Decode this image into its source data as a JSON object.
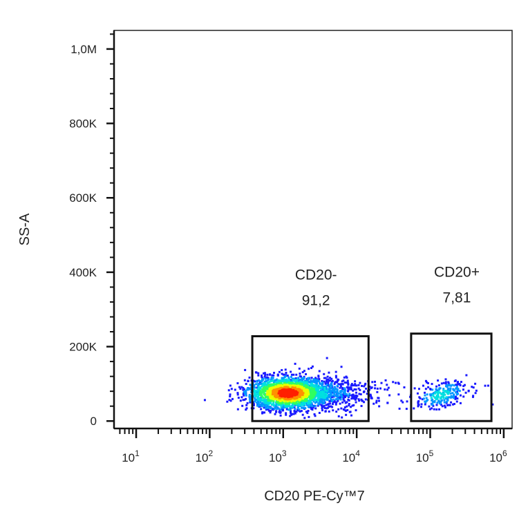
{
  "chart_data": {
    "type": "scatter",
    "plot_style": "flow cytometry density dot plot",
    "xlabel": "CD20 PE-Cy™7",
    "ylabel": "SS-A",
    "x_scale": "log",
    "xlim": [
      5,
      1300000
    ],
    "ylim": [
      -20000,
      1050000
    ],
    "x_ticks": [
      {
        "value": 10,
        "base": "10",
        "exp": "1"
      },
      {
        "value": 100,
        "base": "10",
        "exp": "2"
      },
      {
        "value": 1000,
        "base": "10",
        "exp": "3"
      },
      {
        "value": 10000,
        "base": "10",
        "exp": "4"
      },
      {
        "value": 100000,
        "base": "10",
        "exp": "5"
      },
      {
        "value": 1000000,
        "base": "10",
        "exp": "6"
      }
    ],
    "y_ticks": [
      {
        "value": 0,
        "label": "0"
      },
      {
        "value": 200000,
        "label": "200K"
      },
      {
        "value": 400000,
        "label": "400K"
      },
      {
        "value": 600000,
        "label": "600K"
      },
      {
        "value": 800000,
        "label": "800K"
      },
      {
        "value": 1000000,
        "label": "1,0M"
      }
    ],
    "gates": [
      {
        "name": "CD20-",
        "percent": "91,2",
        "x_range": [
          380,
          14500
        ],
        "y_range": [
          0,
          228000
        ]
      },
      {
        "name": "CD20+",
        "percent": "7,81",
        "x_range": [
          55000,
          680000
        ],
        "y_range": [
          0,
          235000
        ]
      }
    ],
    "populations": [
      {
        "name": "CD20-",
        "center_x": 1150,
        "center_y": 75000,
        "spread_x_log10": 0.28,
        "spread_y": 22000,
        "fraction": 0.912
      },
      {
        "name": "CD20+",
        "center_x": 140000,
        "center_y": 70000,
        "spread_x_log10": 0.17,
        "spread_y": 16000,
        "fraction": 0.078
      }
    ],
    "density_colors": [
      "#1a1aff",
      "#0096ff",
      "#00e0e0",
      "#30ff60",
      "#e8ff00",
      "#ff9000",
      "#ff2000"
    ],
    "grid": false,
    "legend": "none"
  }
}
